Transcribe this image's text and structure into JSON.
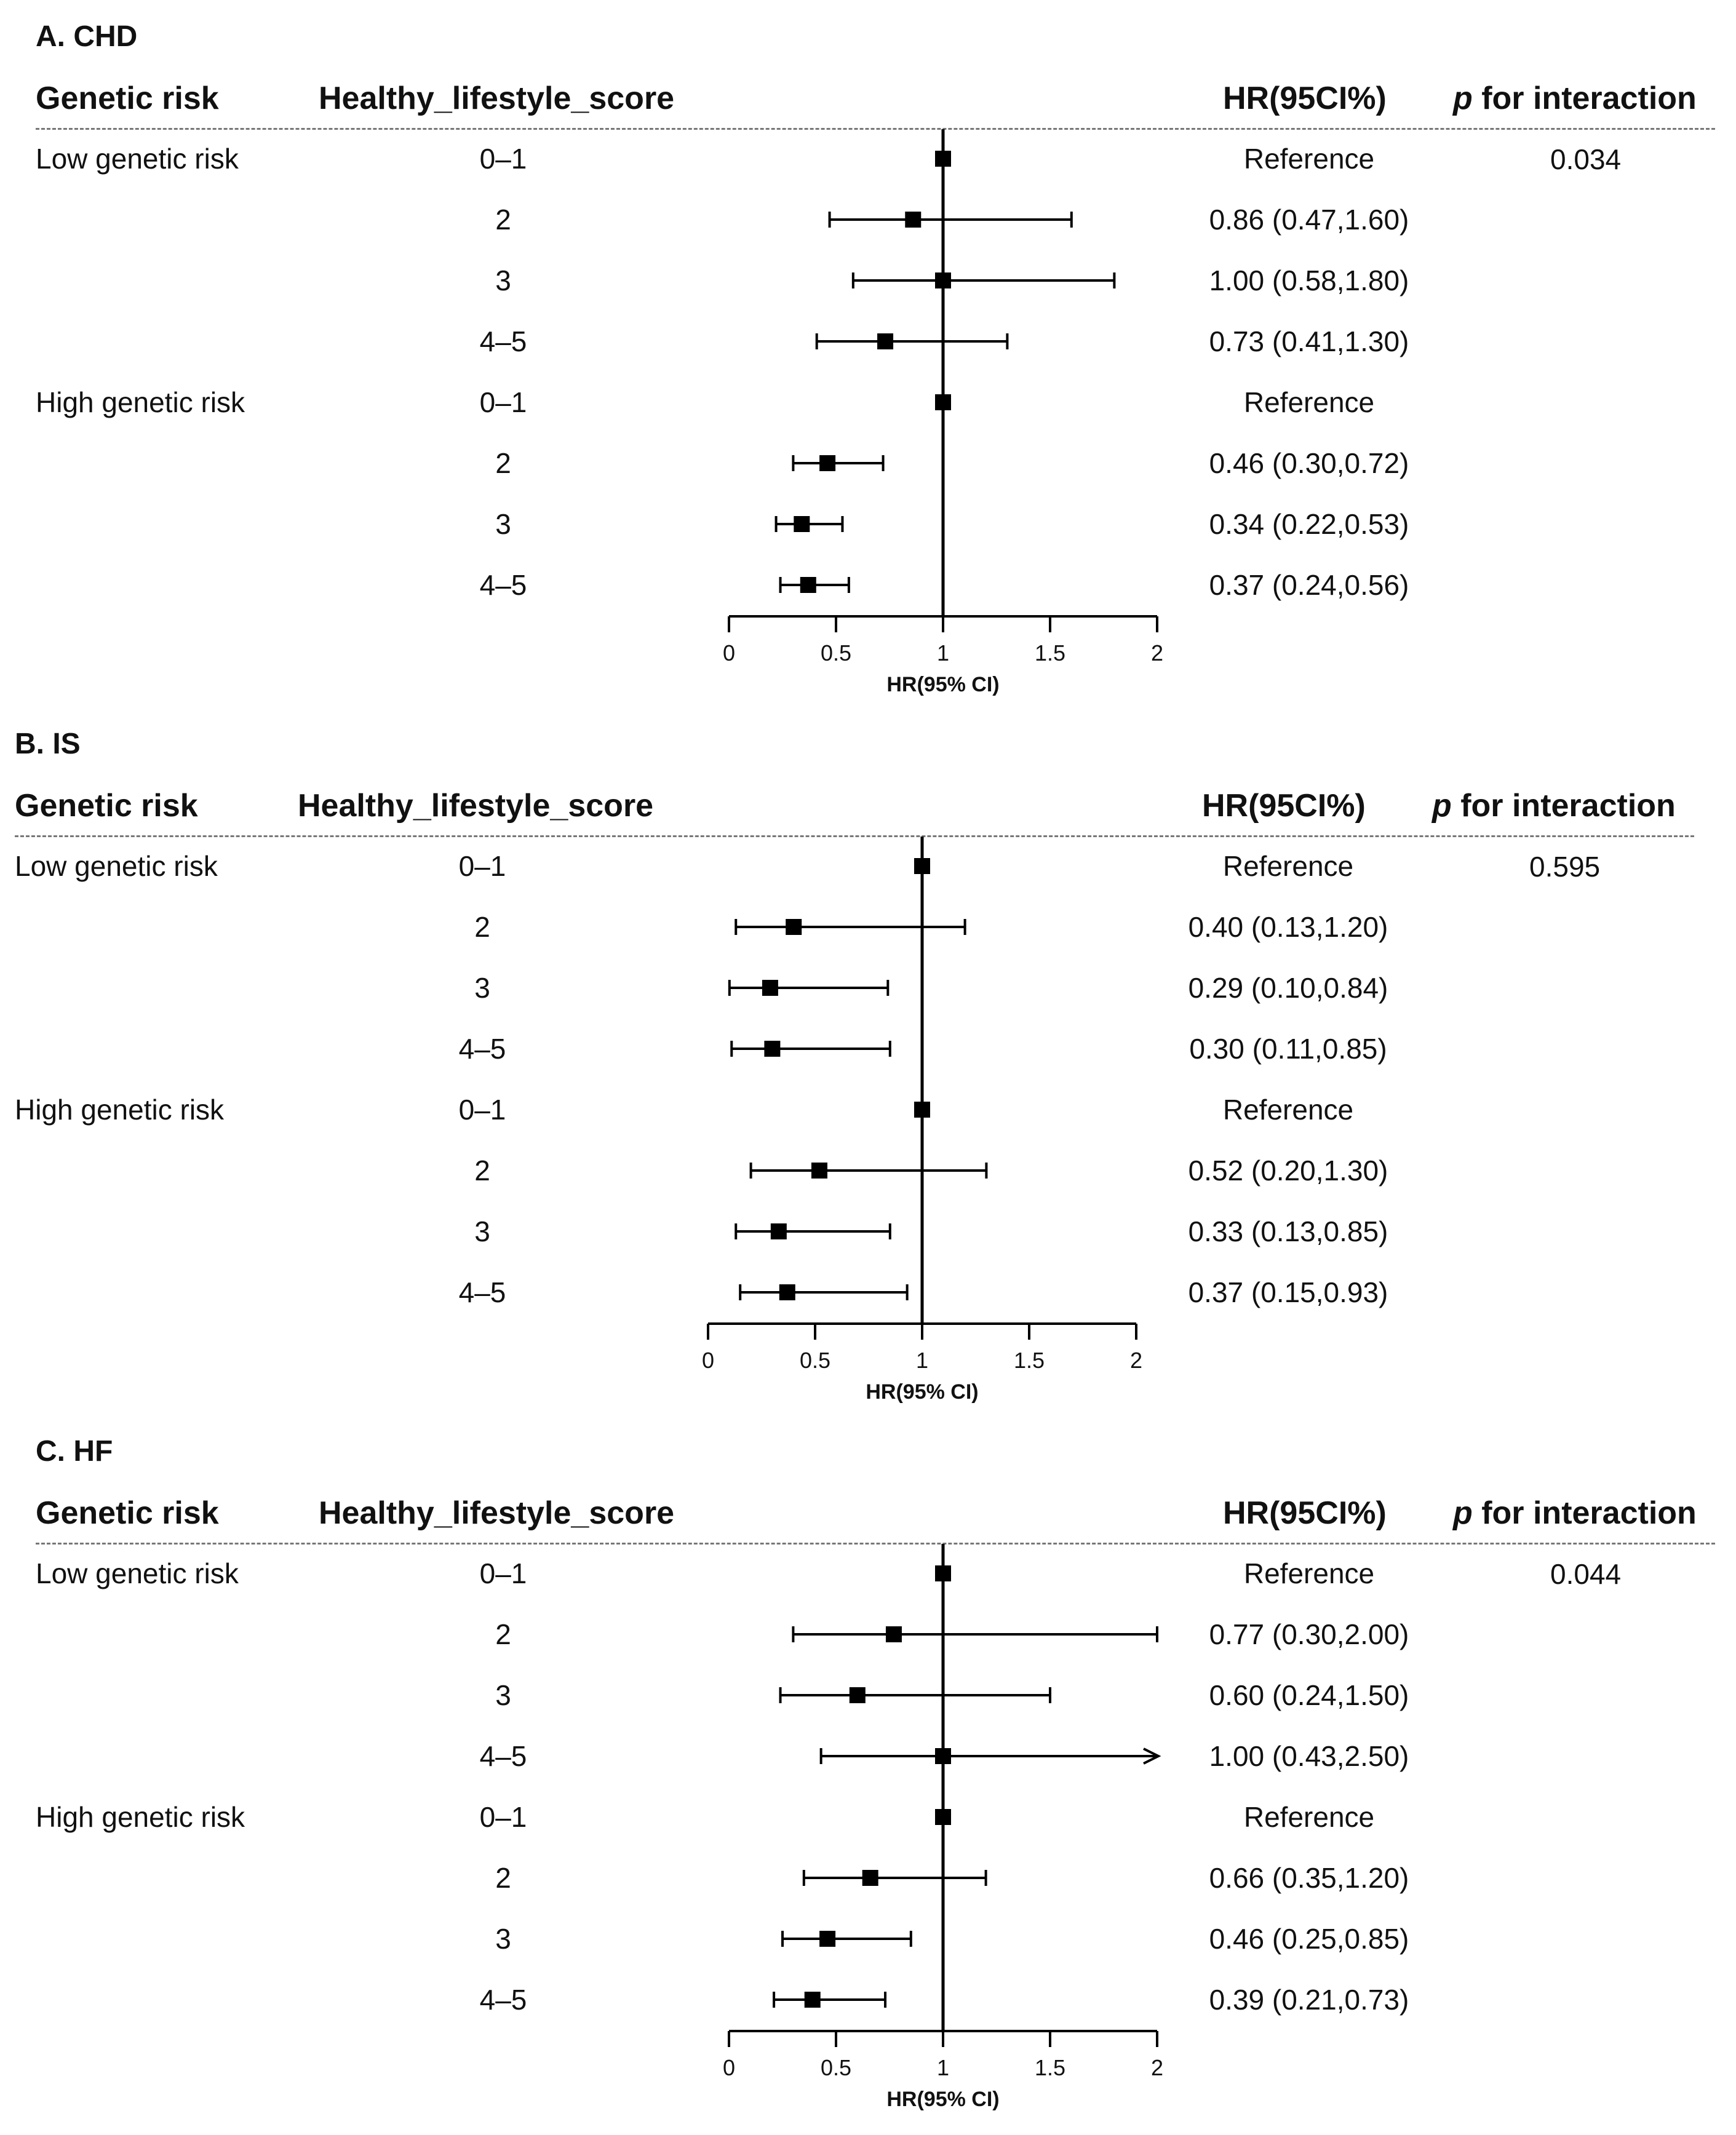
{
  "chart_data": [
    {
      "type": "forest",
      "title": "A.  CHD",
      "columns": {
        "genetic_risk": "Genetic risk",
        "lifestyle": "Healthy_lifestyle_score",
        "hr": "HR(95CI%)",
        "p_prefix": "p",
        "p_suffix": " for interaction"
      },
      "p_interaction": "0.034",
      "xlabel": "HR(95% CI)",
      "xlim": [
        0,
        2
      ],
      "xticks": [
        "0",
        "0.5",
        "1",
        "1.5",
        "2"
      ],
      "reference_line": 1,
      "rows": [
        {
          "group": "Low genetic risk",
          "score": "0–1",
          "hr": 1.0,
          "lo": 1.0,
          "hi": 1.0,
          "label": "Reference"
        },
        {
          "group": "",
          "score": "2",
          "hr": 0.86,
          "lo": 0.47,
          "hi": 1.6,
          "label": "0.86 (0.47,1.60)"
        },
        {
          "group": "",
          "score": "3",
          "hr": 1.0,
          "lo": 0.58,
          "hi": 1.8,
          "label": "1.00 (0.58,1.80)"
        },
        {
          "group": "",
          "score": "4–5",
          "hr": 0.73,
          "lo": 0.41,
          "hi": 1.3,
          "label": "0.73 (0.41,1.30)"
        },
        {
          "group": "High genetic  risk",
          "score": "0–1",
          "hr": 1.0,
          "lo": 1.0,
          "hi": 1.0,
          "label": "Reference"
        },
        {
          "group": "",
          "score": "2",
          "hr": 0.46,
          "lo": 0.3,
          "hi": 0.72,
          "label": "0.46 (0.30,0.72)"
        },
        {
          "group": "",
          "score": "3",
          "hr": 0.34,
          "lo": 0.22,
          "hi": 0.53,
          "label": "0.34 (0.22,0.53)"
        },
        {
          "group": "",
          "score": "4–5",
          "hr": 0.37,
          "lo": 0.24,
          "hi": 0.56,
          "label": "0.37 (0.24,0.56)"
        }
      ]
    },
    {
      "type": "forest",
      "title": "B.  IS",
      "columns": {
        "genetic_risk": "Genetic risk",
        "lifestyle": "Healthy_lifestyle_score",
        "hr": "HR(95CI%)",
        "p_prefix": "p",
        "p_suffix": " for interaction"
      },
      "p_interaction": "0.595",
      "xlabel": "HR(95% CI)",
      "xlim": [
        0,
        2
      ],
      "xticks": [
        "0",
        "0.5",
        "1",
        "1.5",
        "2"
      ],
      "reference_line": 1,
      "rows": [
        {
          "group": "Low genetic risk",
          "score": "0–1",
          "hr": 1.0,
          "lo": 1.0,
          "hi": 1.0,
          "label": "Reference"
        },
        {
          "group": "",
          "score": "2",
          "hr": 0.4,
          "lo": 0.13,
          "hi": 1.2,
          "label": "0.40 (0.13,1.20)"
        },
        {
          "group": "",
          "score": "3",
          "hr": 0.29,
          "lo": 0.1,
          "hi": 0.84,
          "label": "0.29 (0.10,0.84)"
        },
        {
          "group": "",
          "score": "4–5",
          "hr": 0.3,
          "lo": 0.11,
          "hi": 0.85,
          "label": "0.30 (0.11,0.85)"
        },
        {
          "group": "High genetic  risk",
          "score": "0–1",
          "hr": 1.0,
          "lo": 1.0,
          "hi": 1.0,
          "label": "Reference"
        },
        {
          "group": "",
          "score": "2",
          "hr": 0.52,
          "lo": 0.2,
          "hi": 1.3,
          "label": "0.52 (0.20,1.30)"
        },
        {
          "group": "",
          "score": "3",
          "hr": 0.33,
          "lo": 0.13,
          "hi": 0.85,
          "label": "0.33 (0.13,0.85)"
        },
        {
          "group": "",
          "score": "4–5",
          "hr": 0.37,
          "lo": 0.15,
          "hi": 0.93,
          "label": "0.37 (0.15,0.93)"
        }
      ]
    },
    {
      "type": "forest",
      "title": "C.  HF",
      "columns": {
        "genetic_risk": "Genetic risk",
        "lifestyle": "Healthy_lifestyle_score",
        "hr": "HR(95CI%)",
        "p_prefix": "p",
        "p_suffix": " for interaction"
      },
      "p_interaction": "0.044",
      "xlabel": "HR(95% CI)",
      "xlim": [
        0,
        2
      ],
      "xticks": [
        "0",
        "0.5",
        "1",
        "1.5",
        "2"
      ],
      "reference_line": 1,
      "rows": [
        {
          "group": "Low genetic risk",
          "score": "0–1",
          "hr": 1.0,
          "lo": 1.0,
          "hi": 1.0,
          "label": "Reference"
        },
        {
          "group": "",
          "score": "2",
          "hr": 0.77,
          "lo": 0.3,
          "hi": 2.0,
          "label": "0.77 (0.30,2.00)"
        },
        {
          "group": "",
          "score": "3",
          "hr": 0.6,
          "lo": 0.24,
          "hi": 1.5,
          "label": "0.60 (0.24,1.50)"
        },
        {
          "group": "",
          "score": "4–5",
          "hr": 1.0,
          "lo": 0.43,
          "hi": 2.5,
          "label": "1.00 (0.43,2.50)"
        },
        {
          "group": "High genetic  risk",
          "score": "0–1",
          "hr": 1.0,
          "lo": 1.0,
          "hi": 1.0,
          "label": "Reference"
        },
        {
          "group": "",
          "score": "2",
          "hr": 0.66,
          "lo": 0.35,
          "hi": 1.2,
          "label": "0.66 (0.35,1.20)"
        },
        {
          "group": "",
          "score": "3",
          "hr": 0.46,
          "lo": 0.25,
          "hi": 0.85,
          "label": "0.46 (0.25,0.85)"
        },
        {
          "group": "",
          "score": "4–5",
          "hr": 0.39,
          "lo": 0.21,
          "hi": 0.73,
          "label": "0.39 (0.21,0.73)"
        }
      ]
    }
  ]
}
